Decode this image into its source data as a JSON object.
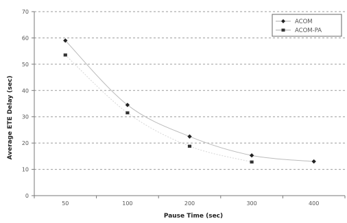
{
  "chart_data": {
    "type": "line",
    "categories": [
      "50",
      "100",
      "200",
      "300",
      "400"
    ],
    "series": [
      {
        "name": "ACOM",
        "values": [
          59,
          34.5,
          22.5,
          15.3,
          13
        ],
        "marker": "diamond",
        "color": "#222222"
      },
      {
        "name": "ACOM-PA",
        "values": [
          53.5,
          31.5,
          18.8,
          12.8,
          null
        ],
        "marker": "square",
        "color": "#333333"
      }
    ],
    "xlabel": "Pause Time (sec)",
    "ylabel": "Average ETE Delay (sec)",
    "ylim": [
      0,
      70
    ],
    "yticks": [
      0,
      10,
      20,
      30,
      40,
      50,
      60,
      70
    ],
    "grid": true,
    "legend_position": "top-right"
  }
}
